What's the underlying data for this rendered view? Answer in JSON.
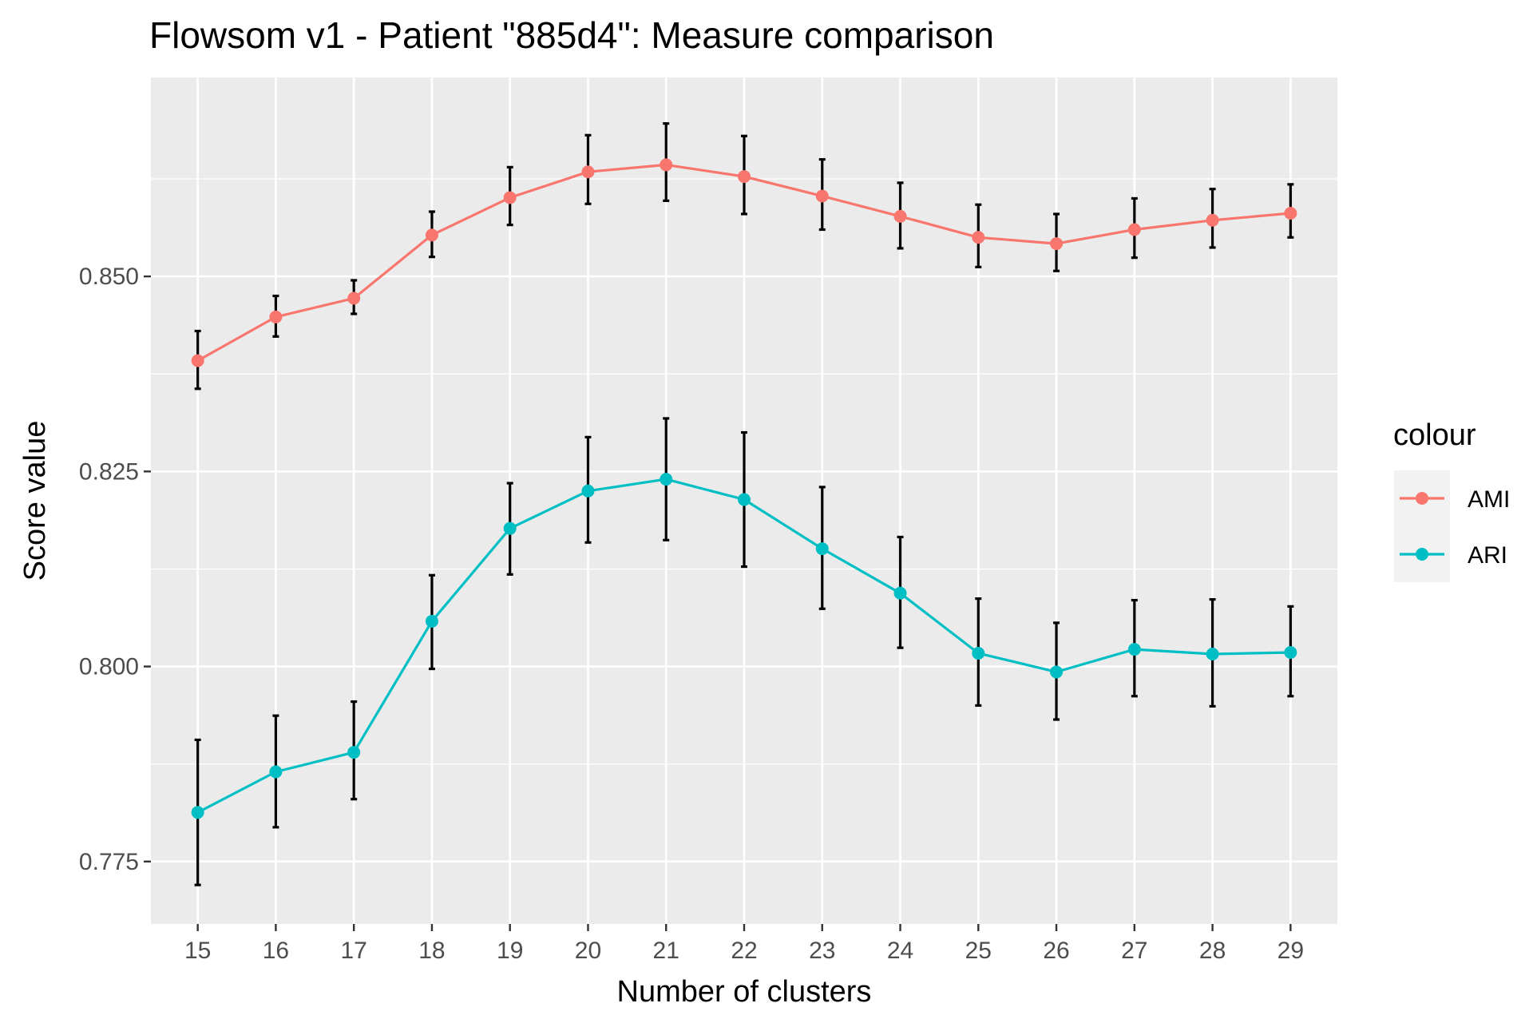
{
  "chart_data": {
    "type": "line",
    "title": "Flowsom v1 - Patient \"885d4\": Measure comparison",
    "xlabel": "Number of clusters",
    "ylabel": "Score value",
    "x": [
      15,
      16,
      17,
      18,
      19,
      20,
      21,
      22,
      23,
      24,
      25,
      26,
      27,
      28,
      29
    ],
    "x_tick_labels": [
      "15",
      "16",
      "17",
      "18",
      "19",
      "20",
      "21",
      "22",
      "23",
      "24",
      "25",
      "26",
      "27",
      "28",
      "29"
    ],
    "y_ticks": [
      0.775,
      0.8,
      0.825,
      0.85
    ],
    "y_tick_labels": [
      "0.775",
      "0.800",
      "0.825",
      "0.850"
    ],
    "ylim": [
      0.767,
      0.8755
    ],
    "xlim": [
      14.4,
      29.6
    ],
    "grid": true,
    "legend": {
      "title": "colour",
      "placement": "right"
    },
    "series": [
      {
        "name": "AMI",
        "color": "#F8766D",
        "values": [
          0.8392,
          0.8448,
          0.8472,
          0.8553,
          0.8601,
          0.8634,
          0.8643,
          0.8628,
          0.8603,
          0.8577,
          0.855,
          0.8542,
          0.856,
          0.8572,
          0.8581
        ],
        "error_low": [
          0.8356,
          0.8423,
          0.8452,
          0.8525,
          0.8566,
          0.8593,
          0.8597,
          0.858,
          0.856,
          0.8536,
          0.8512,
          0.8507,
          0.8524,
          0.8537,
          0.855
        ],
        "error_high": [
          0.843,
          0.8475,
          0.8495,
          0.8583,
          0.864,
          0.8681,
          0.8696,
          0.868,
          0.865,
          0.862,
          0.8592,
          0.858,
          0.86,
          0.8612,
          0.8618
        ]
      },
      {
        "name": "ARI",
        "color": "#00BFC4",
        "values": [
          0.7813,
          0.7865,
          0.789,
          0.8058,
          0.8177,
          0.8225,
          0.824,
          0.8214,
          0.8151,
          0.8094,
          0.8017,
          0.7993,
          0.8022,
          0.8016,
          0.8018
        ],
        "error_low": [
          0.772,
          0.7794,
          0.783,
          0.7997,
          0.8118,
          0.8159,
          0.8162,
          0.8128,
          0.8074,
          0.8024,
          0.795,
          0.7932,
          0.7962,
          0.7949,
          0.7962
        ],
        "error_high": [
          0.7906,
          0.7937,
          0.7955,
          0.8117,
          0.8235,
          0.8294,
          0.8318,
          0.83,
          0.823,
          0.8166,
          0.8087,
          0.8056,
          0.8085,
          0.8086,
          0.8077
        ]
      }
    ],
    "colors": {
      "panel_background": "#EBEBEB",
      "grid_major": "#FFFFFF",
      "error_bar": "#000000",
      "legend_key_background": "#F2F2F2"
    }
  }
}
